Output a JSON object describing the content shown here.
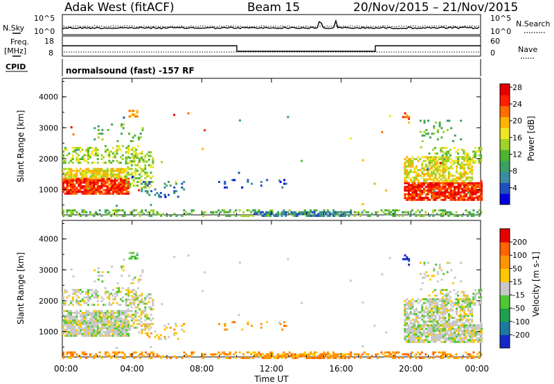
{
  "header": {
    "station": "Adak West (fitACF)",
    "beam": "Beam 15",
    "dates": "20/Nov/2015 – 21/Nov/2015"
  },
  "top_panels": {
    "nsky_label": "N.Sky",
    "nsearch_label": "N.Search",
    "freq_label_1": "Freq.",
    "freq_label_2": "[MHz]",
    "nave_label": "Nave",
    "cpid_label": "CPID",
    "cpid_text": "normalsound (fast) -157 RF",
    "noise_ticks_left": [
      "10^5",
      "10^0"
    ],
    "noise_ticks_right": [
      "10^5",
      "10^0"
    ],
    "freq_ticks": [
      "18",
      "8"
    ],
    "nave_ticks": [
      "60",
      "0"
    ]
  },
  "chart_data": [
    {
      "type": "heatmap",
      "title": "",
      "xlabel": "",
      "ylabel": "Slant Range [km]",
      "yticks": [
        "1000",
        "2000",
        "3000",
        "4000"
      ],
      "xlim": [
        0,
        24
      ],
      "ylim": [
        180,
        4600
      ],
      "colorbar": {
        "label": "Power [dB]",
        "ticks": [
          "4",
          "8",
          "12",
          "16",
          "20",
          "24",
          "28"
        ],
        "colors": [
          "#0000e0",
          "#2050c0",
          "#3c8ca0",
          "#3ca064",
          "#50b432",
          "#a0d228",
          "#f0e628",
          "#ffb400",
          "#ff6e00",
          "#ff1e00",
          "#e60000"
        ]
      }
    },
    {
      "type": "heatmap",
      "title": "",
      "xlabel": "Time UT",
      "ylabel": "Slant Range [km]",
      "yticks": [
        "1000",
        "2000",
        "3000",
        "4000"
      ],
      "xticks": [
        "00:00",
        "04:00",
        "08:00",
        "12:00",
        "16:00",
        "20:00",
        "00:00"
      ],
      "xlim": [
        0,
        24
      ],
      "ylim": [
        180,
        4600
      ],
      "colorbar": {
        "label": "Velocity [m s-1]",
        "ticks": [
          "200",
          "100",
          "50",
          "15",
          "-15",
          "-50",
          "-100",
          "-200"
        ],
        "colors": [
          "#1428c8",
          "#1e78a0",
          "#1ea050",
          "#50c832",
          "#c8c8c8",
          "#ffc800",
          "#ff9600",
          "#ff6400",
          "#e60000"
        ]
      }
    }
  ]
}
